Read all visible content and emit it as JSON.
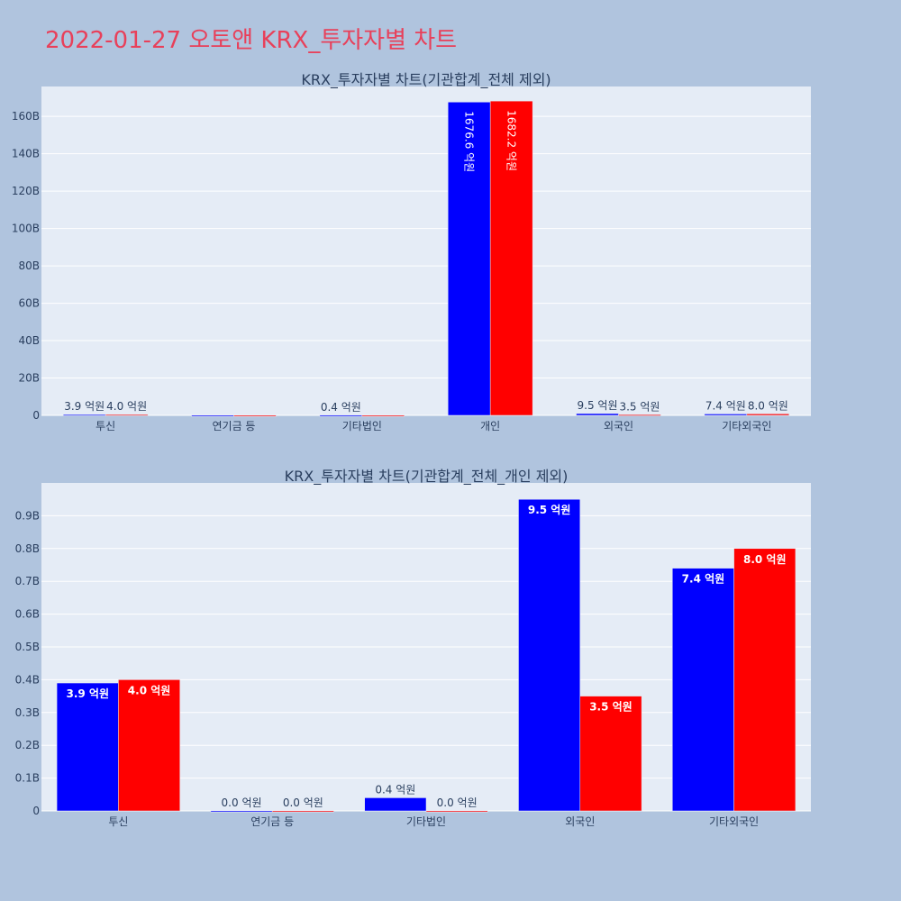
{
  "title": "2022-01-27 오토앤 KRX_투자자별 차트",
  "colors": {
    "series_a": "#0000ff",
    "series_b": "#ff0000",
    "title": "#e8405a",
    "plot_bg": "#e5ecf6",
    "page_bg": "#b0c4de"
  },
  "chart_data": [
    {
      "type": "bar",
      "title": "KRX_투자자별 차트(기관합계_전체 제외)",
      "categories": [
        "투신",
        "연기금 등",
        "기타법인",
        "개인",
        "외국인",
        "기타외국인"
      ],
      "series": [
        {
          "values": [
            0.39,
            0,
            0.04,
            167.66,
            0.95,
            0.74
          ],
          "labels": [
            "3.9 억원",
            "",
            "0.4 억원",
            "1676.6 억원",
            "9.5 억원",
            "7.4 억원"
          ]
        },
        {
          "values": [
            0.4,
            0,
            0,
            168.22,
            0.35,
            0.8
          ],
          "labels": [
            "4.0 억원",
            "",
            "",
            "1682.2 억원",
            "3.5 억원",
            "8.0 억원"
          ]
        }
      ],
      "ylim": [
        0,
        176
      ],
      "yticks": [
        0,
        20,
        40,
        60,
        80,
        100,
        120,
        140,
        160
      ],
      "ytick_labels": [
        "0",
        "20B",
        "40B",
        "60B",
        "80B",
        "100B",
        "120B",
        "140B",
        "160B"
      ],
      "grid": true
    },
    {
      "type": "bar",
      "title": "KRX_투자자별 차트(기관합계_전체_개인 제외)",
      "categories": [
        "투신",
        "연기금 등",
        "기타법인",
        "외국인",
        "기타외국인"
      ],
      "series": [
        {
          "values": [
            0.39,
            0,
            0.04,
            0.95,
            0.74
          ],
          "labels": [
            "3.9 억원",
            "0.0 억원",
            "0.4 억원",
            "9.5 억원",
            "7.4 억원"
          ]
        },
        {
          "values": [
            0.4,
            0,
            0,
            0.35,
            0.8
          ],
          "labels": [
            "4.0 억원",
            "0.0 억원",
            "0.0 억원",
            "3.5 억원",
            "8.0 억원"
          ]
        }
      ],
      "ylim": [
        0,
        1.0
      ],
      "yticks": [
        0,
        0.1,
        0.2,
        0.3,
        0.4,
        0.5,
        0.6,
        0.7,
        0.8,
        0.9
      ],
      "ytick_labels": [
        "0",
        "0.1B",
        "0.2B",
        "0.3B",
        "0.4B",
        "0.5B",
        "0.6B",
        "0.7B",
        "0.8B",
        "0.9B"
      ],
      "grid": true
    }
  ]
}
